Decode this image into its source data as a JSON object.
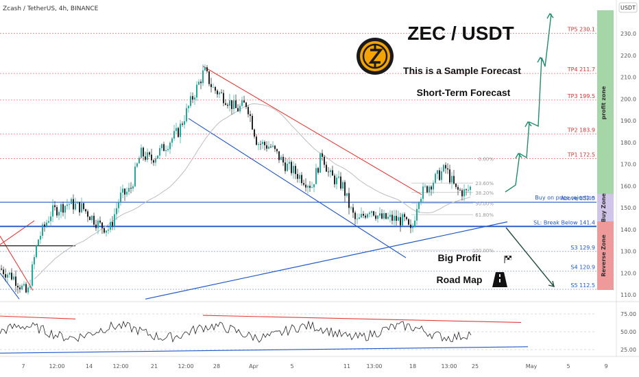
{
  "header": {
    "symbol_text": "Zcash / TetherUS, 4h, BINANCE",
    "currency_badge": "USDT"
  },
  "title": {
    "main": "ZEC / USDT",
    "line1": "This is a Sample Forecast",
    "line2": "Short-Term Forecast"
  },
  "labels": {
    "big_profit": "Big Profit",
    "road_map": "Road Map",
    "logo_icon": "zcash-logo-icon",
    "flag_icon": "checkered-flag-icon",
    "road_icon": "road-icon"
  },
  "zones": {
    "profit_label": "profit zone",
    "buy_label": "Buy Zone",
    "reverse_label": "Reverse Zone",
    "profit_color": "#a5d6a7",
    "buy_color": "#d1c4e9",
    "reverse_color": "#ef9a9a"
  },
  "colors": {
    "candle_up": "#26a69a",
    "candle_down": "#222222",
    "resistance": "#e53935",
    "support": "#1e56c8",
    "ma": "#bdbdbd",
    "target_line": "#e57373",
    "arrow": "#1e8c6b"
  },
  "chart_data": {
    "type": "candlestick",
    "title": "ZEC / USDT",
    "y_axis": {
      "range": [
        107,
        235
      ],
      "ticks": [
        110,
        120,
        130,
        140,
        150,
        160,
        170,
        180,
        190,
        200,
        210,
        220,
        230
      ]
    },
    "x_axis": {
      "ticks": [
        "7",
        "12:00",
        "14",
        "12:00",
        "21",
        "12:00",
        "28",
        "Apr",
        "5",
        "11",
        "13:00",
        "18",
        "13:00",
        "25",
        "May",
        "5",
        "9"
      ]
    },
    "levels": [
      {
        "label": "TP5 230.1",
        "value": 230.1,
        "kind": "target"
      },
      {
        "label": "TP4 211.7",
        "value": 211.7,
        "kind": "target"
      },
      {
        "label": "TP3 199.5",
        "value": 199.5,
        "kind": "target"
      },
      {
        "label": "TP2 183.9",
        "value": 183.9,
        "kind": "target"
      },
      {
        "label": "TP1 172.5",
        "value": 172.5,
        "kind": "target"
      },
      {
        "label": "Buy on price rejection",
        "value": 155,
        "kind": "note"
      },
      {
        "label": "Above 152.5",
        "value": 152.5,
        "kind": "entry"
      },
      {
        "label": "SL: Break Below 141.4",
        "value": 141.4,
        "kind": "stop"
      },
      {
        "label": "S3 129.9",
        "value": 129.9,
        "kind": "support"
      },
      {
        "label": "S4 120.9",
        "value": 120.9,
        "kind": "support"
      },
      {
        "label": "S5 112.5",
        "value": 112.5,
        "kind": "support"
      }
    ],
    "fibonacci": [
      {
        "label": "0.00%",
        "value": 172.5
      },
      {
        "label": "23.60%",
        "value": 161.3
      },
      {
        "label": "38.20%",
        "value": 157.0
      },
      {
        "label": "50.00%",
        "value": 152.0
      },
      {
        "label": "61.80%",
        "value": 146.8
      },
      {
        "label": "100.00%",
        "value": 130.5
      }
    ],
    "rsi": {
      "ticks": [
        25,
        50,
        75
      ],
      "range": [
        15,
        85
      ]
    }
  }
}
